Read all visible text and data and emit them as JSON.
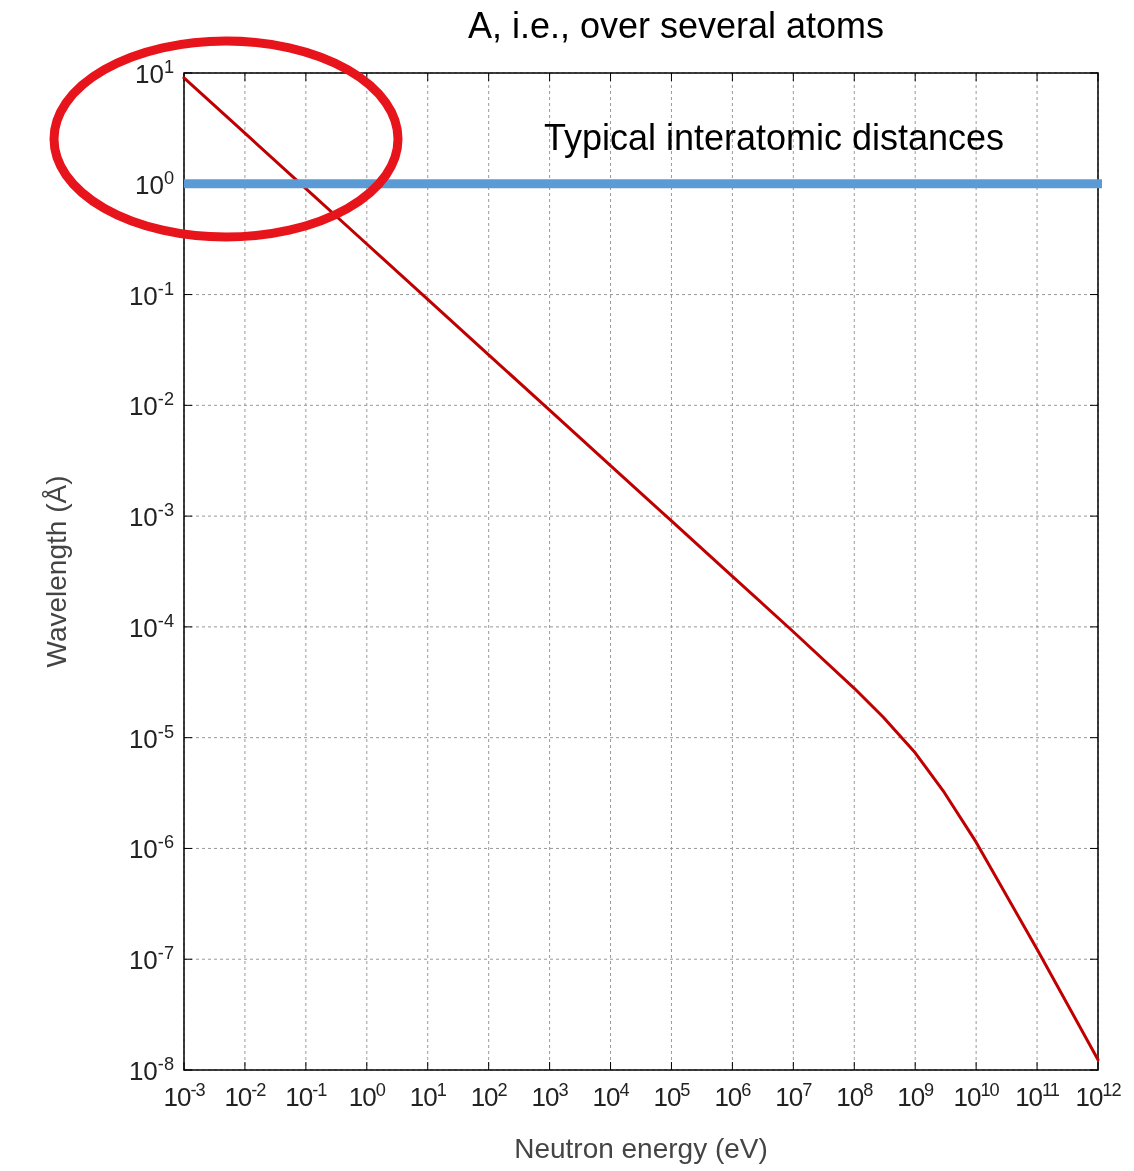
{
  "chart_data": {
    "type": "line",
    "xlabel": "Neutron energy (eV)",
    "ylabel": "Wavelength (Å)",
    "log": "xy",
    "x": [
      0.001,
      0.01,
      0.1,
      1,
      10,
      100,
      1000,
      10000,
      100000,
      1000000,
      10000000,
      100000000,
      300000000,
      1000000000,
      3000000000,
      10000000000,
      100000000000,
      1000000000000
    ],
    "series": [
      {
        "color": "#c00000",
        "values": [
          9.04,
          2.86,
          0.904,
          0.286,
          0.0904,
          0.0286,
          0.00904,
          0.00286,
          0.000904,
          0.000286,
          9.04e-05,
          2.79e-05,
          1.53e-05,
          7.3e-06,
          3.2e-06,
          1.14e-06,
          1.23e-07,
          1.24e-08
        ]
      }
    ],
    "xlim": [
      0.001,
      1000000000000
    ],
    "ylim": [
      1e-08,
      10
    ],
    "xticks": [
      {
        "value": 0.001,
        "label": "10$^{-3}$"
      },
      {
        "value": 0.01,
        "label": "10$^{-2}$"
      },
      {
        "value": 0.1,
        "label": "10$^{-1}$"
      },
      {
        "value": 1,
        "label": "10$^{0}$"
      },
      {
        "value": 10,
        "label": "10$^{1}$"
      },
      {
        "value": 100,
        "label": "10$^{2}$"
      },
      {
        "value": 1000,
        "label": "10$^{3}$"
      },
      {
        "value": 10000,
        "label": "10$^{4}$"
      },
      {
        "value": 100000,
        "label": "10$^{5}$"
      },
      {
        "value": 1000000,
        "label": "10$^{6}$"
      },
      {
        "value": 10000000,
        "label": "10$^{7}$"
      },
      {
        "value": 100000000,
        "label": "10$^{8}$"
      },
      {
        "value": 1000000000,
        "label": "10$^{9}$"
      },
      {
        "value": 10000000000,
        "label": "10$^{10}$"
      },
      {
        "value": 100000000000,
        "label": "10$^{11}$"
      },
      {
        "value": 1000000000000,
        "label": "10$^{12}$"
      }
    ],
    "yticks": [
      {
        "value": 1e-08,
        "label": "10$^{-8}$"
      },
      {
        "value": 1e-07,
        "label": "10$^{-7}$"
      },
      {
        "value": 1e-06,
        "label": "10$^{-6}$"
      },
      {
        "value": 1e-05,
        "label": "10$^{-5}$"
      },
      {
        "value": 0.0001,
        "label": "10$^{-4}$"
      },
      {
        "value": 0.001,
        "label": "10$^{-3}$"
      },
      {
        "value": 0.01,
        "label": "10$^{-2}$"
      },
      {
        "value": 0.1,
        "label": "10$^{-1}$"
      },
      {
        "value": 1,
        "label": "10$^{0}$"
      },
      {
        "value": 10,
        "label": "10$^{1}$"
      }
    ],
    "grid": true,
    "marker": "none",
    "line_style": "solid",
    "ref_lines": [
      {
        "axis": "y",
        "value": 1,
        "label": "Typical interatomic distances",
        "color": "#5b9bd5"
      }
    ],
    "annotations": [
      "A, i.e., over several atoms"
    ]
  }
}
